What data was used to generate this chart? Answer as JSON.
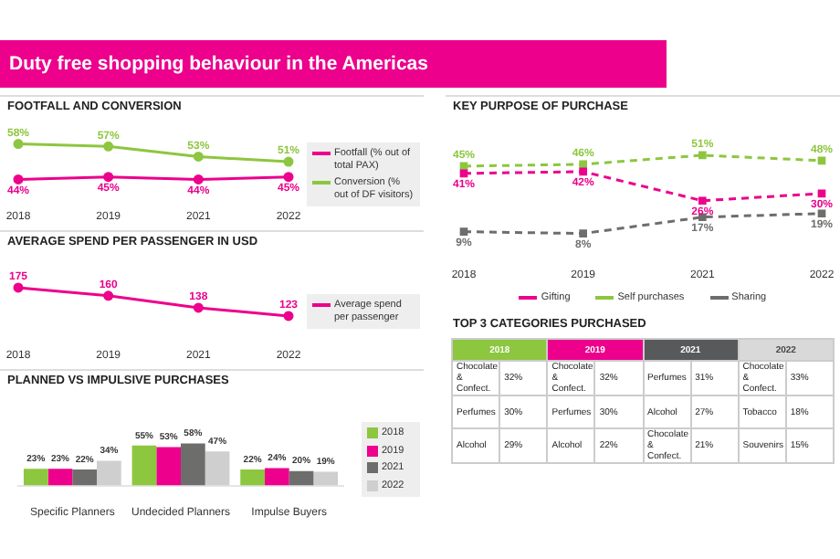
{
  "chart_data": [
    {
      "type": "other",
      "title": "Duty free shopping behaviour in the Americas"
    },
    {
      "type": "line",
      "title": "FOOTFALL AND CONVERSION",
      "categories": [
        "2018",
        "2019",
        "2021",
        "2022"
      ],
      "tick_labels": "x",
      "legend": "right",
      "marker": "circle",
      "line_style": "solid",
      "series": [
        {
          "name": "Footfall (% out of total PAX)",
          "color": "#ec008c",
          "values": [
            44,
            45,
            44,
            45
          ],
          "value_labels": [
            "44%",
            "45%",
            "44%",
            "45%"
          ]
        },
        {
          "name": "Conversion (% out of DF visitors)",
          "color": "#8dc63f",
          "values": [
            58,
            57,
            53,
            51
          ],
          "value_labels": [
            "58%",
            "57%",
            "53%",
            "51%"
          ]
        }
      ]
    },
    {
      "type": "line",
      "title": "AVERAGE SPEND PER PASSENGER IN USD",
      "categories": [
        "2018",
        "2019",
        "2021",
        "2022"
      ],
      "tick_labels": "x",
      "legend": "right",
      "marker": "circle",
      "line_style": "solid",
      "data_labels": true,
      "series": [
        {
          "name": "Average spend per passenger",
          "color": "#ec008c",
          "values": [
            175,
            160,
            138,
            123
          ]
        }
      ]
    },
    {
      "type": "bar",
      "title": "PLANNED VS IMPULSIVE PURCHASES",
      "categories": [
        "Specific Planners",
        "Undecided Planners",
        "Impulse Buyers"
      ],
      "tick_labels": "x",
      "legend": "right",
      "series": [
        {
          "name": "2018",
          "color": "#8dc63f",
          "values": [
            23,
            55,
            22
          ],
          "value_labels": [
            "23%",
            "55%",
            "22%"
          ]
        },
        {
          "name": "2019",
          "color": "#ec008c",
          "values": [
            23,
            53,
            24
          ],
          "value_labels": [
            "23%",
            "53%",
            "24%"
          ]
        },
        {
          "name": "2021",
          "color": "#6d6e6b",
          "values": [
            22,
            58,
            20
          ],
          "value_labels": [
            "22%",
            "58%",
            "20%"
          ]
        },
        {
          "name": "2022",
          "color": "#cfcfcf",
          "values": [
            34,
            47,
            19
          ],
          "value_labels": [
            "34%",
            "47%",
            "19%"
          ]
        }
      ]
    },
    {
      "type": "line",
      "title": "KEY PURPOSE OF PURCHASE",
      "categories": [
        "2018",
        "2019",
        "2021",
        "2022"
      ],
      "tick_labels": "x",
      "legend": "bottom",
      "marker": "square",
      "line_style": "dashed",
      "series": [
        {
          "name": "Gifting",
          "color": "#ec008c",
          "values": [
            41,
            42,
            26,
            30
          ],
          "value_labels": [
            "41%",
            "42%",
            "26%",
            "30%"
          ]
        },
        {
          "name": "Self purchases",
          "color": "#8dc63f",
          "values": [
            45,
            46,
            51,
            48
          ],
          "value_labels": [
            "45%",
            "46%",
            "51%",
            "48%"
          ]
        },
        {
          "name": "Sharing",
          "color": "#6d6e6b",
          "values": [
            9,
            8,
            17,
            19
          ],
          "value_labels": [
            "9%",
            "8%",
            "17%",
            "19%"
          ]
        }
      ]
    },
    {
      "type": "other",
      "title": "TOP 3 CATEGORIES PURCHASED",
      "categories": [
        "2018",
        "2019",
        "2021",
        "2022"
      ],
      "colors": [
        "#8dc63f",
        "#ec008c",
        "#58595b",
        "#d9d9d9"
      ],
      "cell_labels": [
        [
          "Chocolate & Confect.",
          "32%",
          "Chocolate & Confect.",
          "32%",
          "Perfumes",
          "31%",
          "Chocolate & Confect.",
          "33%"
        ],
        [
          "Perfumes",
          "30%",
          "Perfumes",
          "30%",
          "Alcohol",
          "27%",
          "Tobacco",
          "18%"
        ],
        [
          "Alcohol",
          "29%",
          "Alcohol",
          "22%",
          "Chocolate & Confect.",
          "21%",
          "Souvenirs",
          "15%"
        ]
      ]
    }
  ]
}
